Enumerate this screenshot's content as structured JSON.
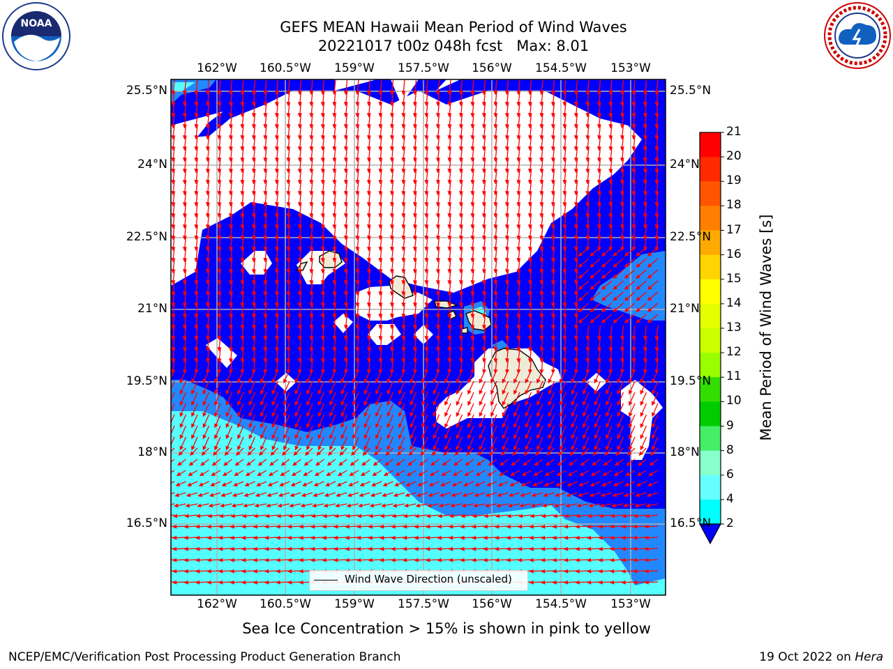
{
  "title_line1": "GEFS MEAN Hawaii Mean Period of Wind Waves",
  "title_line2": "20221017 t00z 048h fcst   Max: 8.01",
  "lon_ticks": [
    "162°W",
    "160.5°W",
    "159°W",
    "157.5°W",
    "156°W",
    "154.5°W",
    "153°W"
  ],
  "lat_ticks": [
    "25.5°N",
    "24°N",
    "22.5°N",
    "21°N",
    "19.5°N",
    "18°N",
    "16.5°N"
  ],
  "colorbar": {
    "label": "Mean Period of Wind Waves [s]",
    "ticks": [
      "21",
      "20",
      "19",
      "18",
      "17",
      "16",
      "15",
      "14",
      "13",
      "12",
      "11",
      "10",
      "9",
      "8",
      "6",
      "4",
      "2"
    ],
    "colors": [
      "#ff0000",
      "#ff2a00",
      "#ff5500",
      "#ff7f00",
      "#ffaa00",
      "#ffd400",
      "#ffff00",
      "#e5ff00",
      "#ccff00",
      "#99ff00",
      "#55ee11",
      "#00dd00",
      "#11ee44",
      "#55ff88",
      "#aaffff",
      "#55ffff",
      "#00ffff",
      "#2288ff",
      "#0000ff"
    ]
  },
  "legend_label": "Wind Wave Direction (unscaled)",
  "subtitle": "Sea Ice Concentration > 15% is shown in pink to yellow",
  "footer_left": "NCEP/EMC/Verification Post Processing Product Generation Branch",
  "footer_right_prefix": "19 Oct 2022 on ",
  "footer_right_host": "Hera",
  "logo_left": "NOAA",
  "logo_left_ring": "NATIONAL OCEANIC AND ATMOSPHERIC ADMINISTRATION · U.S. DEPARTMENT OF COMMERCE",
  "logo_right_ring": "NATIONAL WEATHER SERVICE",
  "map_colors": {
    "land": "#eeecd8",
    "ocean_blue": "#0000ff",
    "mid_blue": "#2288ff",
    "cyan": "#55ffff",
    "arrow": "#ff0000",
    "grid": "#b0b0b0"
  }
}
